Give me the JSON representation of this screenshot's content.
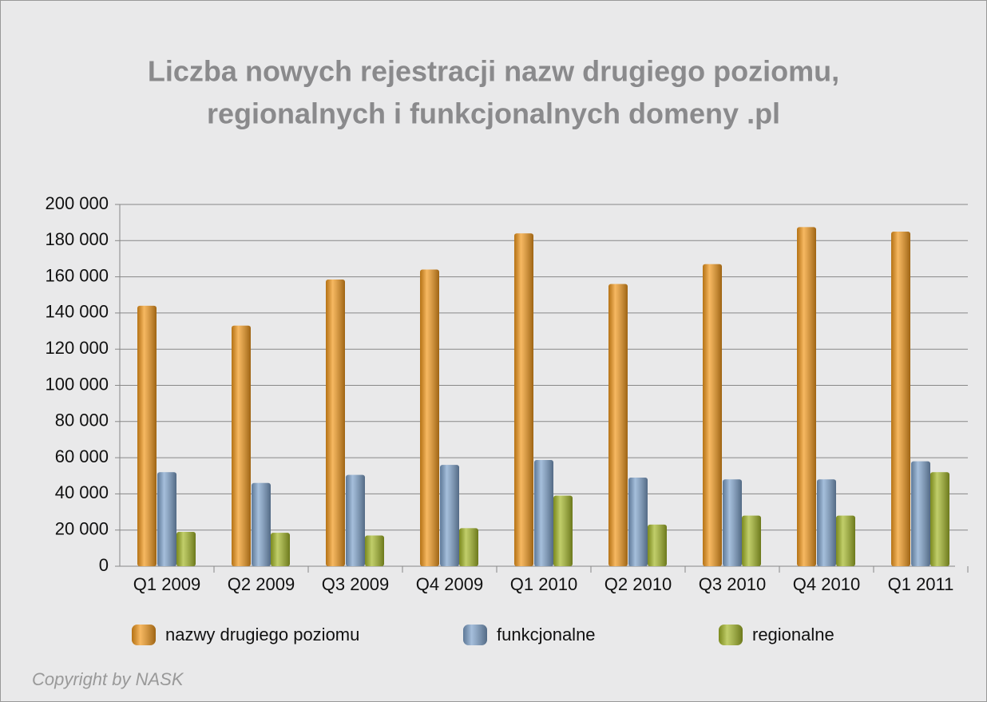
{
  "chart_data": {
    "type": "bar",
    "title": [
      "Liczba nowych rejestracji nazw drugiego poziomu,",
      "regionalnych i funkcjonalnych domeny .pl"
    ],
    "categories": [
      "Q1 2009",
      "Q2 2009",
      "Q3 2009",
      "Q4 2009",
      "Q1 2010",
      "Q2 2010",
      "Q3 2010",
      "Q4 2010",
      "Q1 2011"
    ],
    "series": [
      {
        "name": "nazwy drugiego poziomu",
        "color": "#f39a1e",
        "values": [
          144000,
          133000,
          158500,
          164000,
          184000,
          156000,
          167000,
          187500,
          185000
        ]
      },
      {
        "name": "funkcjonalne",
        "color": "#7fa3cc",
        "values": [
          52000,
          46000,
          50500,
          56000,
          58700,
          49000,
          48000,
          48000,
          58000
        ]
      },
      {
        "name": "regionalne",
        "color": "#a6b92a",
        "values": [
          19000,
          18500,
          17000,
          21000,
          39000,
          23000,
          28000,
          28000,
          52000
        ]
      }
    ],
    "ylim": [
      0,
      200000
    ],
    "yticks": [
      0,
      {
        "value": 20000,
        "label": "20 000"
      },
      {
        "value": 40000,
        "label": "40 000"
      },
      {
        "value": 60000,
        "label": "60 000"
      },
      {
        "value": 80000,
        "label": "80 000"
      },
      {
        "value": 100000,
        "label": "100 000"
      },
      {
        "value": 120000,
        "label": "120 000"
      },
      {
        "value": 140000,
        "label": "140 000"
      },
      {
        "value": 160000,
        "label": "160 000"
      },
      {
        "value": 180000,
        "label": "180 000"
      },
      {
        "value": 200000,
        "label": "200 000"
      }
    ],
    "grid": true,
    "legend": "bottom",
    "footer": "Copyright by NASK"
  }
}
